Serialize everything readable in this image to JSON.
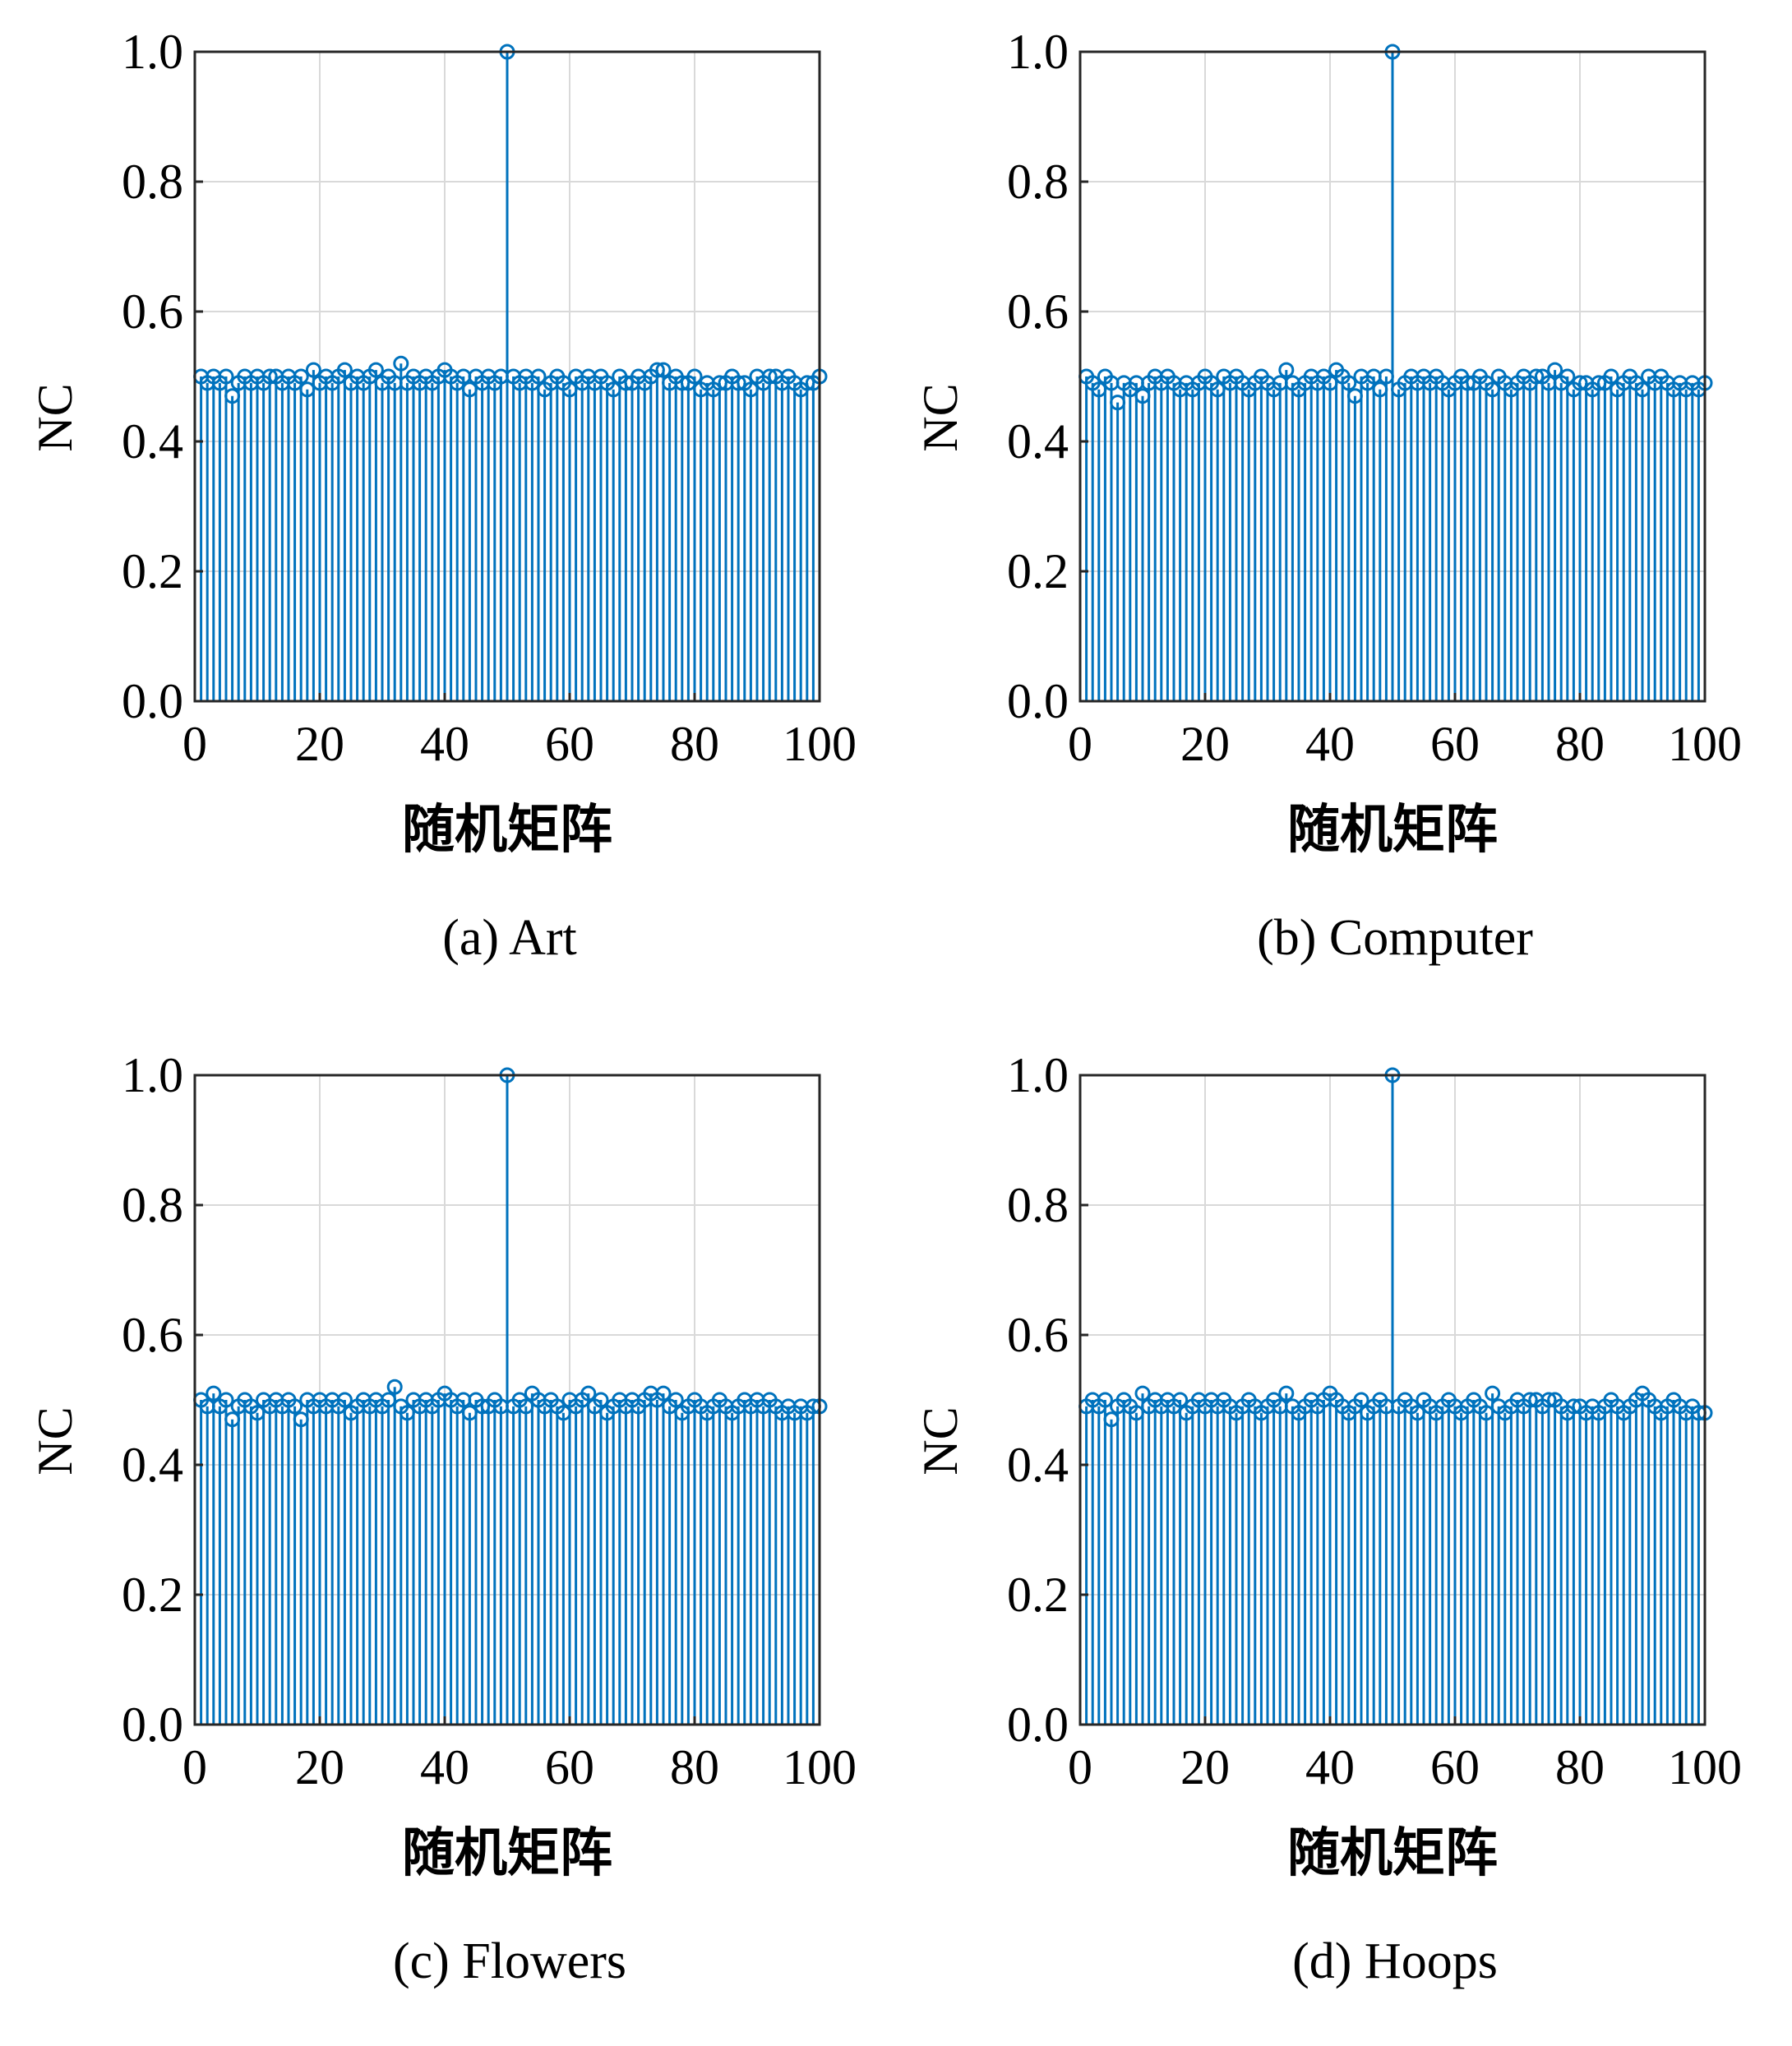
{
  "style": {
    "series_color": "#0072bd",
    "grid_color": "#d9d9d9",
    "axis_color": "#262626"
  },
  "chart_data": [
    {
      "type": "stem",
      "caption": "(a) Art",
      "xlabel": "随机矩阵",
      "ylabel": "NC",
      "xlim": [
        0,
        100
      ],
      "ylim": [
        0,
        1.0
      ],
      "xticks": [
        "0",
        "20",
        "40",
        "60",
        "80",
        "100"
      ],
      "yticks": [
        "0.0",
        "0.2",
        "0.4",
        "0.6",
        "0.8",
        "1.0"
      ],
      "grid": true,
      "series": [
        {
          "x_start": 1,
          "values": [
            0.5,
            0.49,
            0.5,
            0.49,
            0.5,
            0.47,
            0.49,
            0.5,
            0.49,
            0.5,
            0.49,
            0.5,
            0.5,
            0.49,
            0.5,
            0.49,
            0.5,
            0.48,
            0.51,
            0.49,
            0.5,
            0.49,
            0.5,
            0.51,
            0.49,
            0.5,
            0.49,
            0.5,
            0.51,
            0.49,
            0.5,
            0.49,
            0.52,
            0.49,
            0.5,
            0.49,
            0.5,
            0.49,
            0.5,
            0.51,
            0.5,
            0.49,
            0.5,
            0.48,
            0.5,
            0.49,
            0.5,
            0.49,
            0.5,
            1.0,
            0.5,
            0.49,
            0.5,
            0.49,
            0.5,
            0.48,
            0.49,
            0.5,
            0.49,
            0.48,
            0.5,
            0.49,
            0.5,
            0.49,
            0.5,
            0.49,
            0.48,
            0.5,
            0.49,
            0.49,
            0.5,
            0.49,
            0.5,
            0.51,
            0.51,
            0.49,
            0.5,
            0.49,
            0.49,
            0.5,
            0.48,
            0.49,
            0.48,
            0.49,
            0.49,
            0.5,
            0.49,
            0.49,
            0.48,
            0.5,
            0.49,
            0.5,
            0.5,
            0.49,
            0.5,
            0.49,
            0.48,
            0.49,
            0.49,
            0.5
          ]
        }
      ]
    },
    {
      "type": "stem",
      "caption": "(b) Computer",
      "xlabel": "随机矩阵",
      "ylabel": "NC",
      "xlim": [
        0,
        100
      ],
      "ylim": [
        0,
        1.0
      ],
      "xticks": [
        "0",
        "20",
        "40",
        "60",
        "80",
        "100"
      ],
      "yticks": [
        "0.0",
        "0.2",
        "0.4",
        "0.6",
        "0.8",
        "1.0"
      ],
      "grid": true,
      "series": [
        {
          "x_start": 1,
          "values": [
            0.5,
            0.49,
            0.48,
            0.5,
            0.49,
            0.46,
            0.49,
            0.48,
            0.49,
            0.47,
            0.49,
            0.5,
            0.49,
            0.5,
            0.49,
            0.48,
            0.49,
            0.48,
            0.49,
            0.5,
            0.49,
            0.48,
            0.5,
            0.49,
            0.5,
            0.49,
            0.48,
            0.49,
            0.5,
            0.49,
            0.48,
            0.49,
            0.51,
            0.49,
            0.48,
            0.49,
            0.5,
            0.49,
            0.5,
            0.49,
            0.51,
            0.5,
            0.49,
            0.47,
            0.5,
            0.49,
            0.5,
            0.48,
            0.5,
            1.0,
            0.48,
            0.49,
            0.5,
            0.49,
            0.5,
            0.49,
            0.5,
            0.49,
            0.48,
            0.49,
            0.5,
            0.49,
            0.49,
            0.5,
            0.49,
            0.48,
            0.5,
            0.49,
            0.48,
            0.49,
            0.5,
            0.49,
            0.5,
            0.5,
            0.49,
            0.51,
            0.49,
            0.5,
            0.48,
            0.49,
            0.49,
            0.48,
            0.49,
            0.49,
            0.5,
            0.48,
            0.49,
            0.5,
            0.49,
            0.48,
            0.5,
            0.49,
            0.5,
            0.49,
            0.48,
            0.49,
            0.48,
            0.49,
            0.48,
            0.49
          ]
        }
      ]
    },
    {
      "type": "stem",
      "caption": "(c) Flowers",
      "xlabel": "随机矩阵",
      "ylabel": "NC",
      "xlim": [
        0,
        100
      ],
      "ylim": [
        0,
        1.0
      ],
      "xticks": [
        "0",
        "20",
        "40",
        "60",
        "80",
        "100"
      ],
      "yticks": [
        "0.0",
        "0.2",
        "0.4",
        "0.6",
        "0.8",
        "1.0"
      ],
      "grid": true,
      "series": [
        {
          "x_start": 1,
          "values": [
            0.5,
            0.49,
            0.51,
            0.49,
            0.5,
            0.47,
            0.49,
            0.5,
            0.49,
            0.48,
            0.5,
            0.49,
            0.5,
            0.49,
            0.5,
            0.49,
            0.47,
            0.5,
            0.49,
            0.5,
            0.49,
            0.5,
            0.49,
            0.5,
            0.48,
            0.49,
            0.5,
            0.49,
            0.5,
            0.49,
            0.5,
            0.52,
            0.49,
            0.48,
            0.5,
            0.49,
            0.5,
            0.49,
            0.5,
            0.51,
            0.5,
            0.49,
            0.5,
            0.48,
            0.5,
            0.49,
            0.49,
            0.5,
            0.49,
            1.0,
            0.49,
            0.5,
            0.49,
            0.51,
            0.5,
            0.49,
            0.5,
            0.49,
            0.48,
            0.5,
            0.49,
            0.5,
            0.51,
            0.49,
            0.5,
            0.48,
            0.49,
            0.5,
            0.49,
            0.5,
            0.49,
            0.5,
            0.51,
            0.5,
            0.51,
            0.49,
            0.5,
            0.48,
            0.49,
            0.5,
            0.49,
            0.48,
            0.49,
            0.5,
            0.49,
            0.48,
            0.49,
            0.5,
            0.49,
            0.5,
            0.49,
            0.5,
            0.49,
            0.48,
            0.49,
            0.48,
            0.49,
            0.48,
            0.49,
            0.49
          ]
        }
      ]
    },
    {
      "type": "stem",
      "caption": "(d) Hoops",
      "xlabel": "随机矩阵",
      "ylabel": "NC",
      "xlim": [
        0,
        100
      ],
      "ylim": [
        0,
        1.0
      ],
      "xticks": [
        "0",
        "20",
        "40",
        "60",
        "80",
        "100"
      ],
      "yticks": [
        "0.0",
        "0.2",
        "0.4",
        "0.6",
        "0.8",
        "1.0"
      ],
      "grid": true,
      "series": [
        {
          "x_start": 1,
          "values": [
            0.49,
            0.5,
            0.49,
            0.5,
            0.47,
            0.49,
            0.5,
            0.49,
            0.48,
            0.51,
            0.49,
            0.5,
            0.49,
            0.5,
            0.49,
            0.5,
            0.48,
            0.49,
            0.5,
            0.49,
            0.5,
            0.49,
            0.5,
            0.49,
            0.48,
            0.49,
            0.5,
            0.49,
            0.48,
            0.49,
            0.5,
            0.49,
            0.51,
            0.49,
            0.48,
            0.49,
            0.5,
            0.49,
            0.5,
            0.51,
            0.5,
            0.49,
            0.48,
            0.49,
            0.5,
            0.48,
            0.49,
            0.5,
            0.49,
            1.0,
            0.49,
            0.5,
            0.49,
            0.48,
            0.5,
            0.49,
            0.48,
            0.49,
            0.5,
            0.49,
            0.48,
            0.49,
            0.5,
            0.49,
            0.48,
            0.51,
            0.49,
            0.48,
            0.49,
            0.5,
            0.49,
            0.5,
            0.5,
            0.49,
            0.5,
            0.5,
            0.49,
            0.48,
            0.49,
            0.49,
            0.48,
            0.49,
            0.48,
            0.49,
            0.5,
            0.49,
            0.48,
            0.49,
            0.5,
            0.51,
            0.5,
            0.49,
            0.48,
            0.49,
            0.5,
            0.49,
            0.48,
            0.49,
            0.48,
            0.48
          ]
        }
      ]
    }
  ]
}
